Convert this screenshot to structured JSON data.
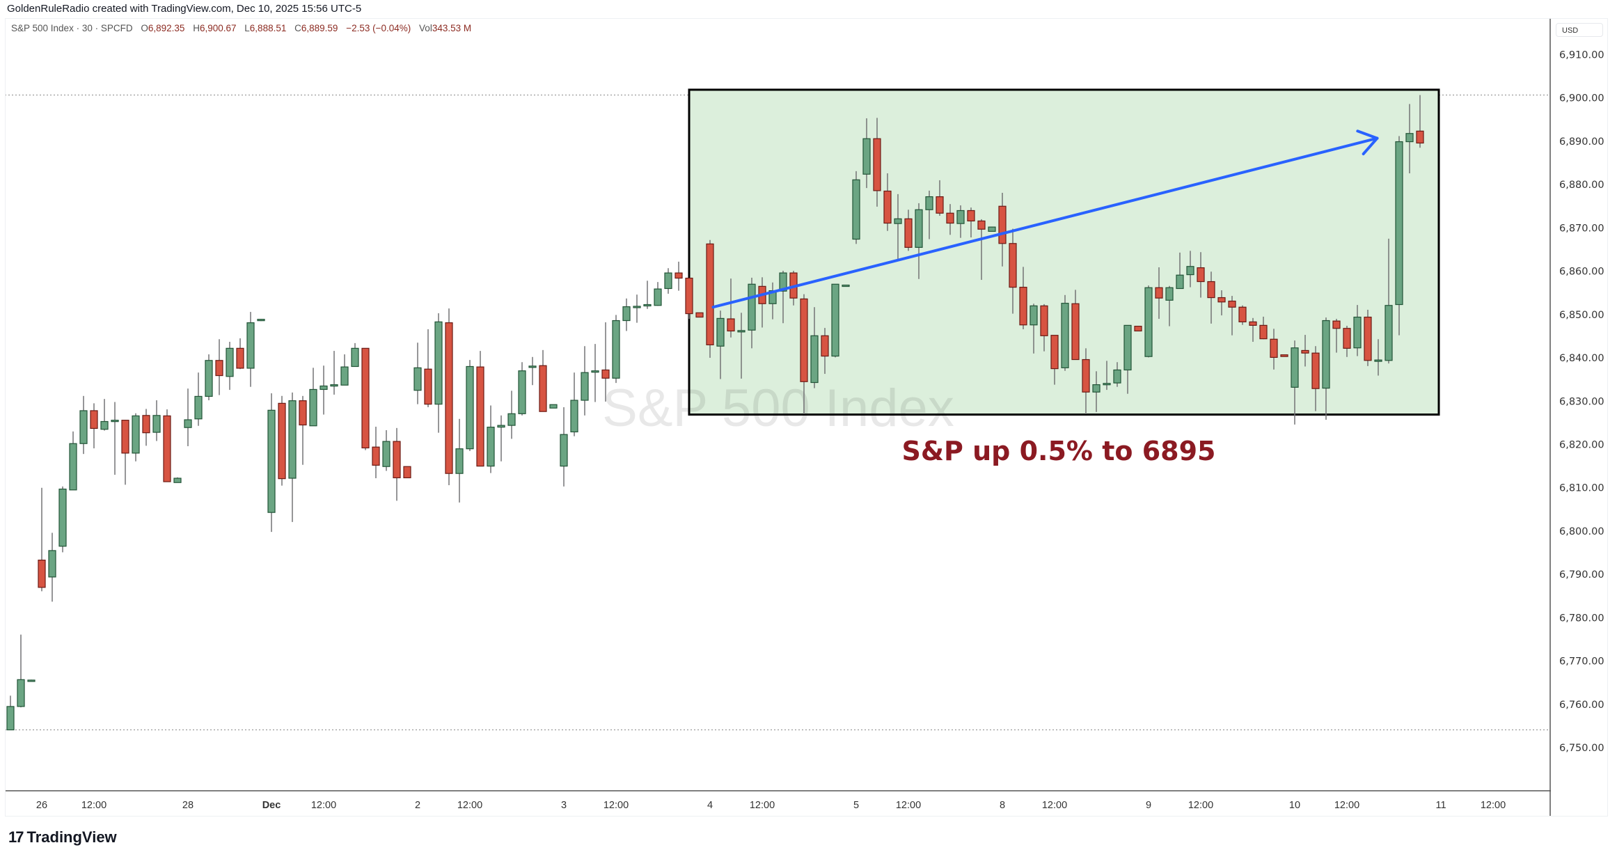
{
  "credit": "GoldenRuleRadio created with TradingView.com, Dec 10, 2025 15:56 UTC-5",
  "legend": {
    "symbol": "S&P 500 Index · 30 · SPCFD",
    "open_label": "O",
    "open": "6,892.35",
    "high_label": "H",
    "high": "6,900.67",
    "low_label": "L",
    "low": "6,888.51",
    "close_label": "C",
    "close": "6,889.59",
    "change": "−2.53 (−0.04%)",
    "vol_label": "Vol",
    "vol": "343.53 M"
  },
  "currency": "USD",
  "logo": {
    "mark": "17",
    "text": "TradingView"
  },
  "colors": {
    "up_fill": "#6ba583",
    "up_border": "#225437",
    "down_fill": "#d75442",
    "down_border": "#6b1a14",
    "wick": "#737375",
    "box_fill": "#dcefdc",
    "arrow": "#2962ff",
    "annotation": "#8b1a22"
  },
  "chart_data": {
    "type": "candlestick",
    "title": "S&P 500 Index",
    "interval": "30",
    "ylim": [
      6740,
      6918
    ],
    "y_ticks": [
      "6,750.00",
      "6,760.00",
      "6,770.00",
      "6,780.00",
      "6,790.00",
      "6,800.00",
      "6,810.00",
      "6,820.00",
      "6,830.00",
      "6,840.00",
      "6,850.00",
      "6,860.00",
      "6,870.00",
      "6,880.00",
      "6,890.00",
      "6,900.00",
      "6,910.00"
    ],
    "y_tick_values": [
      6750,
      6760,
      6770,
      6780,
      6790,
      6800,
      6810,
      6820,
      6830,
      6840,
      6850,
      6860,
      6870,
      6880,
      6890,
      6900,
      6910
    ],
    "x_ticks": [
      {
        "label": "26",
        "bar": 3
      },
      {
        "label": "12:00",
        "bar": 8
      },
      {
        "label": "28",
        "bar": 17
      },
      {
        "label": "Dec",
        "bar": 25
      },
      {
        "label": "12:00",
        "bar": 30
      },
      {
        "label": "2",
        "bar": 39
      },
      {
        "label": "12:00",
        "bar": 44
      },
      {
        "label": "3",
        "bar": 53
      },
      {
        "label": "12:00",
        "bar": 58
      },
      {
        "label": "4",
        "bar": 67
      },
      {
        "label": "12:00",
        "bar": 72
      },
      {
        "label": "5",
        "bar": 81
      },
      {
        "label": "12:00",
        "bar": 86
      },
      {
        "label": "8",
        "bar": 95
      },
      {
        "label": "12:00",
        "bar": 100
      },
      {
        "label": "9",
        "bar": 109
      },
      {
        "label": "12:00",
        "bar": 114
      },
      {
        "label": "10",
        "bar": 123
      },
      {
        "label": "12:00",
        "bar": 128
      },
      {
        "label": "11",
        "bar": 137
      },
      {
        "label": "12:00",
        "bar": 142
      }
    ],
    "hlines": [
      6900.67,
      6754.1
    ],
    "ohlc_fields": [
      "open",
      "high",
      "low",
      "close"
    ],
    "candles": [
      [
        6754.1,
        6762.0,
        6754.1,
        6759.5
      ],
      [
        6759.5,
        6776.1,
        6759.3,
        6765.7
      ],
      [
        6765.3,
        6765.7,
        6765.2,
        6765.6
      ],
      [
        6793.3,
        6810.0,
        6786.1,
        6787.0
      ],
      [
        6789.4,
        6799.6,
        6783.7,
        6795.5
      ],
      [
        6796.5,
        6810.3,
        6795.1,
        6809.7
      ],
      [
        6809.5,
        6823.0,
        6809.5,
        6820.2
      ],
      [
        6820.2,
        6831.2,
        6817.8,
        6827.8
      ],
      [
        6827.8,
        6829.5,
        6819.1,
        6823.7
      ],
      [
        6823.5,
        6830.5,
        6823.2,
        6825.3
      ],
      [
        6825.4,
        6829.8,
        6813.0,
        6825.6
      ],
      [
        6825.6,
        6825.7,
        6810.7,
        6818.0
      ],
      [
        6818.0,
        6827.2,
        6816.1,
        6826.6
      ],
      [
        6826.7,
        6828.2,
        6819.7,
        6822.7
      ],
      [
        6822.8,
        6830.2,
        6820.8,
        6826.7
      ],
      [
        6826.6,
        6828.1,
        6811.4,
        6811.4
      ],
      [
        6811.2,
        6812.4,
        6811.2,
        6812.2
      ],
      [
        6823.9,
        6832.9,
        6819.6,
        6825.7
      ],
      [
        6825.9,
        6836.6,
        6824.3,
        6831.1
      ],
      [
        6831.1,
        6840.8,
        6830.2,
        6839.4
      ],
      [
        6839.4,
        6844.3,
        6831.4,
        6835.9
      ],
      [
        6835.7,
        6843.7,
        6832.6,
        6842.2
      ],
      [
        6842.2,
        6844.5,
        6837.4,
        6837.6
      ],
      [
        6837.6,
        6850.6,
        6833.3,
        6848.1
      ],
      [
        6848.6,
        6849.0,
        6848.5,
        6848.9
      ],
      [
        6804.3,
        6831.8,
        6799.8,
        6827.9
      ],
      [
        6829.5,
        6831.2,
        6810.5,
        6812.1
      ],
      [
        6812.2,
        6832.0,
        6802.1,
        6830.1
      ],
      [
        6830.1,
        6831.2,
        6815.3,
        6824.5
      ],
      [
        6824.3,
        6837.7,
        6824.3,
        6832.7
      ],
      [
        6832.7,
        6838.2,
        6826.9,
        6833.5
      ],
      [
        6833.6,
        6841.6,
        6831.5,
        6833.8
      ],
      [
        6833.7,
        6840.8,
        6833.7,
        6837.9
      ],
      [
        6838.0,
        6843.4,
        6838.0,
        6842.2
      ],
      [
        6842.2,
        6842.2,
        6818.7,
        6819.2
      ],
      [
        6819.4,
        6824.1,
        6812.2,
        6815.2
      ],
      [
        6814.9,
        6823.3,
        6813.9,
        6820.7
      ],
      [
        6820.7,
        6823.8,
        6807.0,
        6812.3
      ],
      [
        6814.9,
        6814.9,
        6812.3,
        6812.3
      ],
      [
        6832.5,
        6843.5,
        6829.3,
        6837.7
      ],
      [
        6837.4,
        6846.6,
        6828.6,
        6829.3
      ],
      [
        6829.3,
        6850.3,
        6822.7,
        6848.3
      ],
      [
        6848.1,
        6851.4,
        6810.6,
        6813.3
      ],
      [
        6813.3,
        6825.9,
        6806.6,
        6819.0
      ],
      [
        6819.0,
        6839.5,
        6818.5,
        6838.0
      ],
      [
        6837.9,
        6841.6,
        6815.0,
        6815.0
      ],
      [
        6815.0,
        6829.0,
        6813.4,
        6824.0
      ],
      [
        6824.0,
        6826.7,
        6816.1,
        6824.4
      ],
      [
        6824.4,
        6832.4,
        6821.3,
        6827.1
      ],
      [
        6827.1,
        6839.0,
        6826.7,
        6837.0
      ],
      [
        6838.0,
        6840.2,
        6833.7,
        6838.1
      ],
      [
        6838.2,
        6841.8,
        6827.6,
        6827.6
      ],
      [
        6828.4,
        6829.2,
        6828.4,
        6829.2
      ],
      [
        6815.0,
        6828.6,
        6810.3,
        6822.3
      ],
      [
        6822.9,
        6836.6,
        6821.9,
        6830.2
      ],
      [
        6830.2,
        6842.7,
        6826.7,
        6836.6
      ],
      [
        6836.8,
        6843.2,
        6829.8,
        6837.0
      ],
      [
        6837.2,
        6848.2,
        6829.9,
        6835.3
      ],
      [
        6835.3,
        6849.9,
        6834.2,
        6848.6
      ],
      [
        6848.6,
        6853.7,
        6846.2,
        6851.8
      ],
      [
        6851.7,
        6854.6,
        6848.1,
        6851.9
      ],
      [
        6852.0,
        6857.8,
        6851.3,
        6852.3
      ],
      [
        6852.1,
        6857.5,
        6852.0,
        6855.9
      ],
      [
        6856.0,
        6860.7,
        6854.8,
        6859.6
      ],
      [
        6859.6,
        6862.2,
        6855.5,
        6858.4
      ],
      [
        6858.4,
        6858.4,
        6849.0,
        6850.2
      ],
      [
        6850.4,
        6850.4,
        6849.4,
        6849.4
      ],
      [
        6866.3,
        6867.2,
        6840.0,
        6843.0
      ],
      [
        6842.7,
        6850.9,
        6835.1,
        6849.1
      ],
      [
        6849.0,
        6858.3,
        6844.7,
        6846.2
      ],
      [
        6846.1,
        6850.4,
        6835.2,
        6846.3
      ],
      [
        6846.4,
        6858.5,
        6842.2,
        6857.0
      ],
      [
        6856.5,
        6858.6,
        6847.0,
        6852.5
      ],
      [
        6852.5,
        6857.4,
        6848.9,
        6855.5
      ],
      [
        6855.4,
        6860.1,
        6848.0,
        6859.6
      ],
      [
        6859.6,
        6860.1,
        6852.1,
        6853.8
      ],
      [
        6853.6,
        6854.7,
        6827.0,
        6834.5
      ],
      [
        6834.3,
        6851.7,
        6833.0,
        6845.1
      ],
      [
        6845.1,
        6846.9,
        6836.3,
        6840.4
      ],
      [
        6840.4,
        6857.0,
        6840.1,
        6857.0
      ],
      [
        6856.7,
        6856.8,
        6856.6,
        6856.8
      ],
      [
        6867.4,
        6883.1,
        6866.3,
        6881.1
      ],
      [
        6882.4,
        6895.3,
        6879.2,
        6890.6
      ],
      [
        6890.6,
        6895.4,
        6874.9,
        6878.6
      ],
      [
        6878.5,
        6882.6,
        6869.3,
        6871.1
      ],
      [
        6871.0,
        6877.8,
        6862.6,
        6872.1
      ],
      [
        6872.1,
        6874.2,
        6864.7,
        6865.5
      ],
      [
        6865.5,
        6875.7,
        6858.2,
        6874.2
      ],
      [
        6874.2,
        6878.6,
        6867.4,
        6877.2
      ],
      [
        6877.2,
        6881.0,
        6872.8,
        6873.4
      ],
      [
        6873.4,
        6875.5,
        6868.4,
        6871.1
      ],
      [
        6871.0,
        6875.2,
        6867.7,
        6874.0
      ],
      [
        6874.0,
        6874.7,
        6867.8,
        6871.6
      ],
      [
        6871.6,
        6872.0,
        6858.0,
        6869.7
      ],
      [
        6869.2,
        6870.2,
        6869.2,
        6870.2
      ],
      [
        6875.0,
        6878.1,
        6861.1,
        6866.4
      ],
      [
        6866.4,
        6869.8,
        6850.2,
        6856.3
      ],
      [
        6856.3,
        6861.0,
        6846.6,
        6847.6
      ],
      [
        6847.6,
        6852.5,
        6841.0,
        6852.0
      ],
      [
        6852.0,
        6852.4,
        6841.5,
        6845.1
      ],
      [
        6845.2,
        6845.2,
        6833.8,
        6837.5
      ],
      [
        6837.7,
        6854.5,
        6837.0,
        6852.6
      ],
      [
        6852.5,
        6855.7,
        6839.6,
        6839.6
      ],
      [
        6839.6,
        6842.2,
        6827.0,
        6832.1
      ],
      [
        6832.1,
        6836.9,
        6827.5,
        6833.8
      ],
      [
        6834.0,
        6839.3,
        6832.6,
        6834.1
      ],
      [
        6834.2,
        6839.0,
        6833.3,
        6837.2
      ],
      [
        6837.2,
        6847.5,
        6831.7,
        6847.5
      ],
      [
        6847.3,
        6847.3,
        6846.2,
        6846.2
      ],
      [
        6840.3,
        6856.7,
        6840.1,
        6856.2
      ],
      [
        6856.2,
        6860.9,
        6849.0,
        6853.8
      ],
      [
        6853.3,
        6856.6,
        6847.3,
        6856.2
      ],
      [
        6856.0,
        6864.3,
        6856.0,
        6859.1
      ],
      [
        6859.2,
        6864.7,
        6856.3,
        6861.1
      ],
      [
        6860.8,
        6864.4,
        6853.9,
        6857.6
      ],
      [
        6857.6,
        6859.9,
        6847.9,
        6853.9
      ],
      [
        6853.9,
        6855.6,
        6849.8,
        6852.9
      ],
      [
        6853.1,
        6854.3,
        6845.2,
        6851.7
      ],
      [
        6851.7,
        6852.1,
        6847.6,
        6848.3
      ],
      [
        6848.3,
        6849.2,
        6843.7,
        6847.5
      ],
      [
        6847.5,
        6849.5,
        6844.3,
        6844.4
      ],
      [
        6844.3,
        6846.7,
        6837.3,
        6840.1
      ],
      [
        6840.7,
        6840.7,
        6840.3,
        6840.3
      ],
      [
        6833.2,
        6844.0,
        6824.6,
        6842.3
      ],
      [
        6841.7,
        6845.3,
        6838.0,
        6841.1
      ],
      [
        6841.1,
        6842.7,
        6827.7,
        6832.9
      ],
      [
        6833.0,
        6849.3,
        6825.7,
        6848.6
      ],
      [
        6848.5,
        6849.0,
        6841.2,
        6846.8
      ],
      [
        6846.8,
        6847.4,
        6840.2,
        6842.2
      ],
      [
        6842.3,
        6852.2,
        6840.4,
        6849.4
      ],
      [
        6849.4,
        6851.1,
        6838.1,
        6839.4
      ],
      [
        6839.4,
        6844.3,
        6835.9,
        6839.5
      ],
      [
        6839.4,
        6867.5,
        6838.7,
        6852.1
      ],
      [
        6852.3,
        6891.2,
        6845.2,
        6889.9
      ],
      [
        6889.9,
        6898.6,
        6882.6,
        6891.8
      ],
      [
        6892.35,
        6900.67,
        6888.51,
        6889.59
      ]
    ],
    "annotations": {
      "watermark": "S&P 500 Index",
      "box": {
        "bar_from": 65,
        "bar_to": 136.8,
        "price_top": 6901.9,
        "price_bottom": 6826.9
      },
      "arrow": {
        "bar_from": 67.3,
        "price_from": 6851.7,
        "bar_to": 130.9,
        "price_to": 6890.7
      },
      "text": {
        "label": "S&P up 0.5% to 6895",
        "bar": 100.4,
        "price": 6818.6
      }
    }
  }
}
